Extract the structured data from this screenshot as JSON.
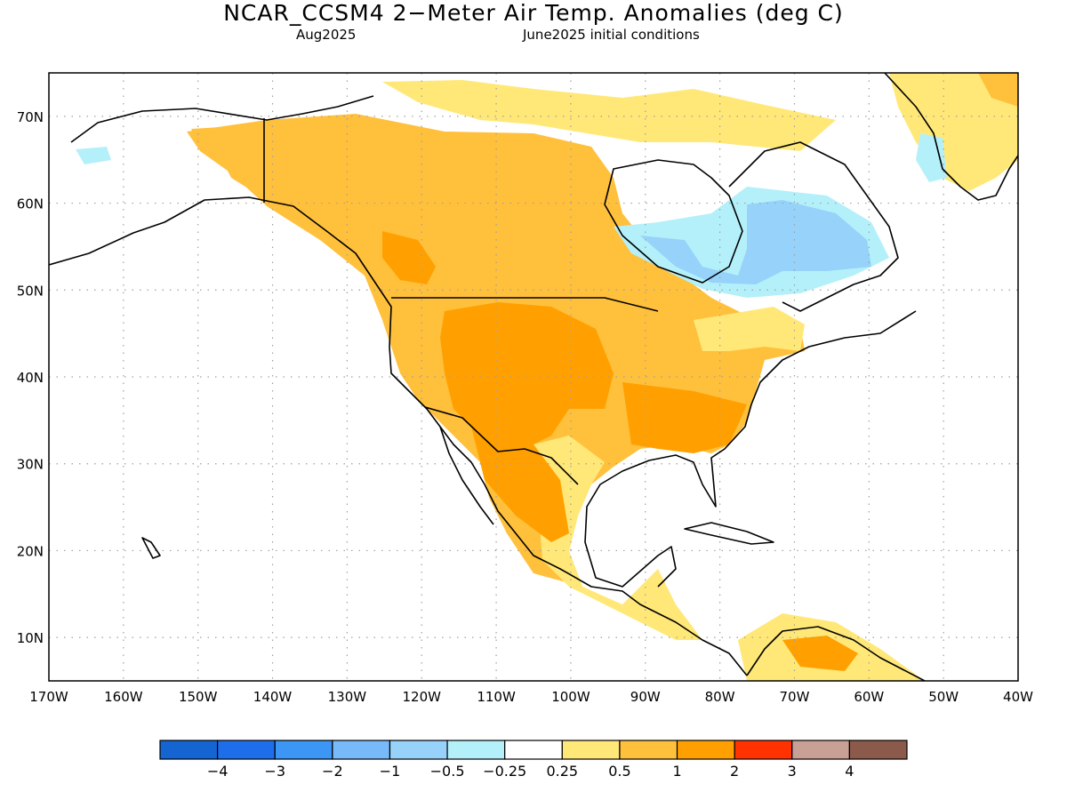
{
  "title": "NCAR_CCSM4 2−Meter Air Temp. Anomalies (deg C)",
  "valid_month": "Aug2025",
  "initial_conditions": "June2025 initial conditions",
  "map": {
    "lat_labels": [
      "70N",
      "60N",
      "50N",
      "40N",
      "30N",
      "20N",
      "10N"
    ],
    "lon_labels": [
      "170W",
      "160W",
      "150W",
      "140W",
      "130W",
      "120W",
      "110W",
      "100W",
      "90W",
      "80W",
      "70W",
      "60W",
      "50W",
      "40W"
    ],
    "lat_range": [
      5,
      75
    ],
    "lon_range": [
      -170,
      -40
    ],
    "gridlines": true,
    "colors": {
      "coastline": "#000000",
      "gridline": "#a0a0a0"
    }
  },
  "colorbar": {
    "colors": [
      "#1464d2",
      "#1e6eeb",
      "#3c96f5",
      "#78b9fa",
      "#96d2fa",
      "#b4f0fa",
      "#ffffff",
      "#ffe878",
      "#ffc03c",
      "#ffa000",
      "#ff3200",
      "#c8a096",
      "#8c5a4b"
    ],
    "tick_labels": [
      "−4",
      "−3",
      "−2",
      "−1",
      "−0.5",
      "−0.25",
      "0.25",
      "0.5",
      "1",
      "2",
      "3",
      "4"
    ]
  }
}
